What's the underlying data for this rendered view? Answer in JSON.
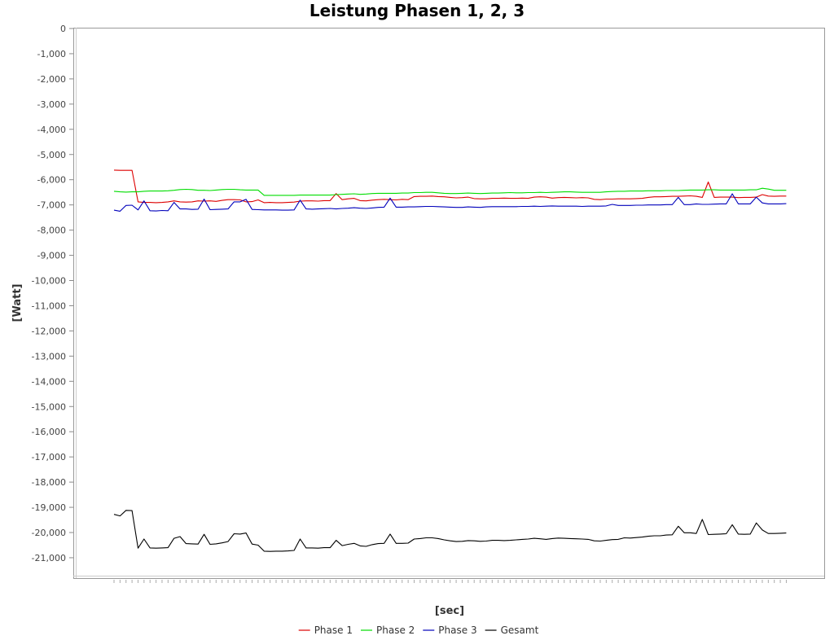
{
  "chart_data": {
    "type": "line",
    "title": "Leistung Phasen 1, 2, 3",
    "xlabel": "[sec]",
    "ylabel": "[Watt]",
    "ylim": [
      -21800,
      0
    ],
    "yticks": [
      0,
      -1000,
      -2000,
      -3000,
      -4000,
      -5000,
      -6000,
      -7000,
      -8000,
      -9000,
      -10000,
      -11000,
      -12000,
      -13000,
      -14000,
      -15000,
      -16000,
      -17000,
      -18000,
      -19000,
      -20000,
      -21000
    ],
    "ytick_labels": [
      "0",
      "-1,000",
      "-2,000",
      "-3,000",
      "-4,000",
      "-5,000",
      "-6,000",
      "-7,000",
      "-8,000",
      "-9,000",
      "-10,000",
      "-11,000",
      "-12,000",
      "-13,000",
      "-14,000",
      "-15,000",
      "-16,000",
      "-17,000",
      "-18,000",
      "-19,000",
      "-20,000",
      "-21,000"
    ],
    "grid": false,
    "legend_position": "bottom",
    "series": [
      {
        "name": "Phase 1",
        "color": "#dd0000",
        "values": [
          -5620,
          -5630,
          -5630,
          -5630,
          -6880,
          -6900,
          -6900,
          -6910,
          -6900,
          -6880,
          -6840,
          -6880,
          -6890,
          -6880,
          -6840,
          -6850,
          -6840,
          -6860,
          -6820,
          -6790,
          -6790,
          -6800,
          -6880,
          -6870,
          -6800,
          -6910,
          -6900,
          -6910,
          -6910,
          -6900,
          -6890,
          -6850,
          -6840,
          -6840,
          -6850,
          -6830,
          -6830,
          -6550,
          -6790,
          -6760,
          -6740,
          -6830,
          -6840,
          -6810,
          -6790,
          -6780,
          -6790,
          -6800,
          -6780,
          -6790,
          -6670,
          -6660,
          -6660,
          -6650,
          -6670,
          -6680,
          -6700,
          -6720,
          -6710,
          -6690,
          -6750,
          -6760,
          -6760,
          -6740,
          -6740,
          -6730,
          -6740,
          -6740,
          -6730,
          -6740,
          -6690,
          -6680,
          -6690,
          -6730,
          -6710,
          -6700,
          -6710,
          -6720,
          -6710,
          -6720,
          -6780,
          -6790,
          -6770,
          -6770,
          -6760,
          -6760,
          -6760,
          -6750,
          -6740,
          -6700,
          -6680,
          -6680,
          -6670,
          -6660,
          -6660,
          -6650,
          -6640,
          -6660,
          -6700,
          -6090,
          -6700,
          -6690,
          -6690,
          -6690,
          -6710,
          -6700,
          -6700,
          -6690,
          -6590,
          -6650,
          -6660,
          -6650,
          -6650
        ]
      },
      {
        "name": "Phase 2",
        "color": "#00dd00",
        "values": [
          -6460,
          -6480,
          -6490,
          -6480,
          -6480,
          -6460,
          -6450,
          -6450,
          -6450,
          -6440,
          -6420,
          -6390,
          -6380,
          -6390,
          -6420,
          -6420,
          -6430,
          -6410,
          -6390,
          -6380,
          -6380,
          -6400,
          -6410,
          -6410,
          -6410,
          -6620,
          -6620,
          -6620,
          -6620,
          -6620,
          -6620,
          -6610,
          -6610,
          -6610,
          -6610,
          -6610,
          -6610,
          -6590,
          -6580,
          -6570,
          -6560,
          -6580,
          -6570,
          -6550,
          -6540,
          -6540,
          -6540,
          -6540,
          -6530,
          -6530,
          -6510,
          -6510,
          -6500,
          -6500,
          -6520,
          -6540,
          -6550,
          -6550,
          -6540,
          -6530,
          -6540,
          -6550,
          -6540,
          -6530,
          -6530,
          -6520,
          -6510,
          -6520,
          -6520,
          -6510,
          -6510,
          -6500,
          -6510,
          -6500,
          -6490,
          -6480,
          -6480,
          -6490,
          -6500,
          -6500,
          -6500,
          -6500,
          -6480,
          -6470,
          -6460,
          -6460,
          -6450,
          -6450,
          -6450,
          -6440,
          -6440,
          -6440,
          -6430,
          -6430,
          -6430,
          -6420,
          -6410,
          -6410,
          -6410,
          -6400,
          -6400,
          -6410,
          -6410,
          -6410,
          -6410,
          -6410,
          -6400,
          -6400,
          -6340,
          -6370,
          -6420,
          -6420,
          -6420
        ]
      },
      {
        "name": "Phase 3",
        "color": "#0000bb",
        "values": [
          -7210,
          -7250,
          -7020,
          -7010,
          -7200,
          -6840,
          -7230,
          -7240,
          -7220,
          -7230,
          -6900,
          -7160,
          -7160,
          -7180,
          -7170,
          -6770,
          -7190,
          -7180,
          -7170,
          -7160,
          -6880,
          -6880,
          -6780,
          -7180,
          -7190,
          -7200,
          -7200,
          -7200,
          -7210,
          -7210,
          -7200,
          -6810,
          -7160,
          -7170,
          -7160,
          -7150,
          -7140,
          -7160,
          -7140,
          -7130,
          -7110,
          -7130,
          -7140,
          -7120,
          -7100,
          -7090,
          -6730,
          -7090,
          -7090,
          -7080,
          -7080,
          -7070,
          -7060,
          -7060,
          -7070,
          -7080,
          -7090,
          -7100,
          -7100,
          -7080,
          -7090,
          -7100,
          -7080,
          -7070,
          -7070,
          -7070,
          -7070,
          -7070,
          -7060,
          -7060,
          -7050,
          -7060,
          -7050,
          -7040,
          -7050,
          -7050,
          -7050,
          -7050,
          -7060,
          -7050,
          -7050,
          -7050,
          -7040,
          -6980,
          -7020,
          -7020,
          -7020,
          -7010,
          -7010,
          -7000,
          -7000,
          -7000,
          -6990,
          -6990,
          -6700,
          -6990,
          -6990,
          -6960,
          -6980,
          -6980,
          -6970,
          -6960,
          -6960,
          -6560,
          -6960,
          -6960,
          -6960,
          -6690,
          -6920,
          -6960,
          -6960,
          -6960,
          -6950
        ]
      },
      {
        "name": "Gesamt",
        "color": "#000000",
        "values": [
          -19280,
          -19340,
          -19120,
          -19130,
          -20620,
          -20260,
          -20610,
          -20620,
          -20610,
          -20600,
          -20230,
          -20160,
          -20440,
          -20450,
          -20460,
          -20070,
          -20470,
          -20450,
          -20410,
          -20360,
          -20050,
          -20060,
          -20020,
          -20460,
          -20500,
          -20740,
          -20750,
          -20740,
          -20740,
          -20730,
          -20710,
          -20260,
          -20610,
          -20610,
          -20620,
          -20600,
          -20600,
          -20310,
          -20520,
          -20470,
          -20430,
          -20530,
          -20550,
          -20480,
          -20440,
          -20430,
          -20060,
          -20430,
          -20430,
          -20420,
          -20260,
          -20240,
          -20210,
          -20210,
          -20240,
          -20290,
          -20330,
          -20360,
          -20350,
          -20320,
          -20330,
          -20350,
          -20340,
          -20310,
          -20310,
          -20320,
          -20310,
          -20290,
          -20270,
          -20260,
          -20230,
          -20250,
          -20270,
          -20240,
          -20220,
          -20230,
          -20240,
          -20250,
          -20260,
          -20270,
          -20330,
          -20340,
          -20310,
          -20280,
          -20270,
          -20210,
          -20220,
          -20200,
          -20180,
          -20150,
          -20130,
          -20130,
          -20100,
          -20090,
          -19750,
          -20010,
          -20010,
          -20040,
          -19480,
          -20080,
          -20070,
          -20060,
          -20050,
          -19690,
          -20060,
          -20070,
          -20060,
          -19620,
          -19900,
          -20040,
          -20040,
          -20030,
          -20020
        ]
      }
    ]
  }
}
